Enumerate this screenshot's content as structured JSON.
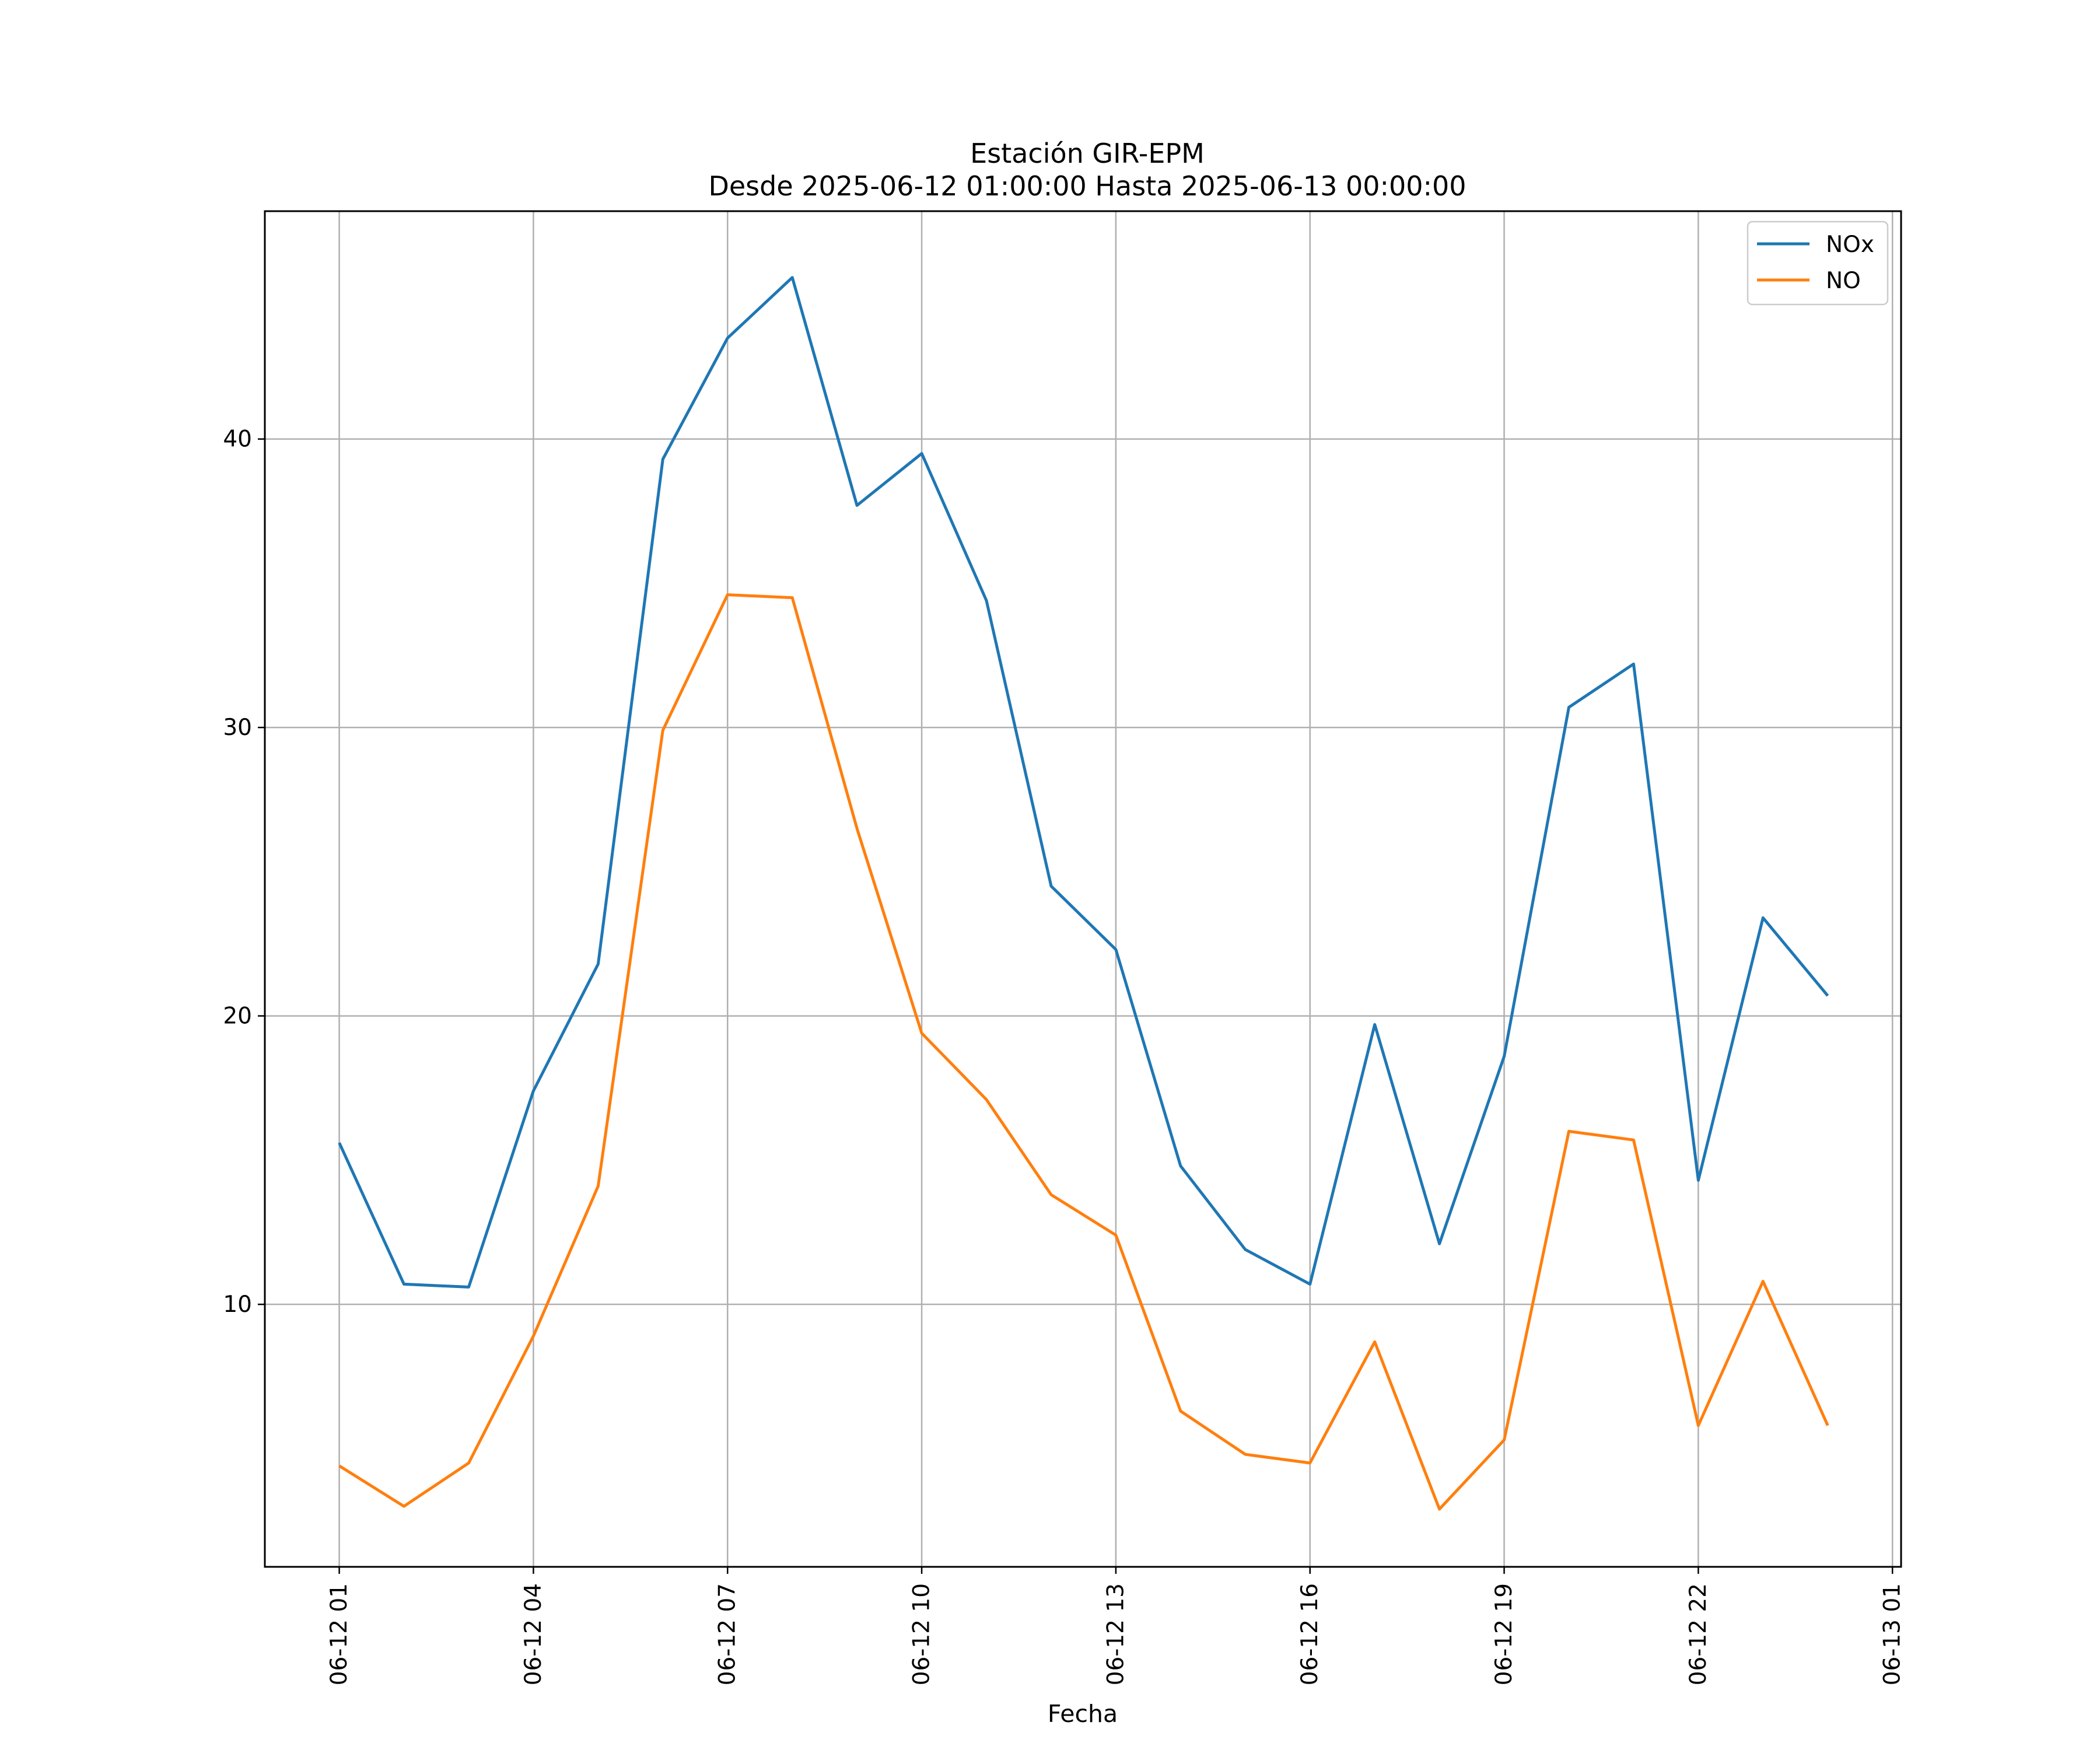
{
  "chart_data": {
    "type": "line",
    "title": "Estación GIR-EPM",
    "subtitle": "Desde 2025-06-12 01:00:00 Hasta 2025-06-13 00:00:00",
    "xlabel": "Fecha",
    "ylabel": "",
    "x": [
      "2025-06-12 01:00",
      "2025-06-12 02:00",
      "2025-06-12 03:00",
      "2025-06-12 04:00",
      "2025-06-12 05:00",
      "2025-06-12 06:00",
      "2025-06-12 07:00",
      "2025-06-12 08:00",
      "2025-06-12 09:00",
      "2025-06-12 10:00",
      "2025-06-12 11:00",
      "2025-06-12 12:00",
      "2025-06-12 13:00",
      "2025-06-12 14:00",
      "2025-06-12 15:00",
      "2025-06-12 16:00",
      "2025-06-12 17:00",
      "2025-06-12 18:00",
      "2025-06-12 19:00",
      "2025-06-12 20:00",
      "2025-06-12 21:00",
      "2025-06-12 22:00",
      "2025-06-12 23:00",
      "2025-06-13 00:00"
    ],
    "series": [
      {
        "name": "NOx",
        "color": "#1f77b4",
        "values": [
          15.6,
          10.7,
          10.6,
          17.4,
          21.8,
          39.3,
          43.5,
          45.6,
          37.7,
          39.5,
          34.4,
          24.5,
          22.3,
          14.8,
          11.9,
          10.7,
          19.7,
          12.1,
          18.6,
          30.7,
          32.2,
          14.3,
          23.4,
          20.7
        ]
      },
      {
        "name": "NO",
        "color": "#ff7f0e",
        "values": [
          4.4,
          3.0,
          4.5,
          8.9,
          14.1,
          29.9,
          34.6,
          34.5,
          26.5,
          19.4,
          17.1,
          13.8,
          12.4,
          6.3,
          4.8,
          4.5,
          8.7,
          2.9,
          5.3,
          16.0,
          15.7,
          5.8,
          10.8,
          5.8
        ]
      }
    ],
    "xticks": [
      "06-12 01",
      "06-12 04",
      "06-12 07",
      "06-12 10",
      "06-12 13",
      "06-12 16",
      "06-12 19",
      "06-12 22",
      "06-13 01"
    ],
    "yticks": [
      10,
      20,
      30,
      40
    ],
    "xlim": [
      "2025-06-11 23:51",
      "2025-06-13 01:08"
    ],
    "ylim": [
      0.9,
      47.9
    ],
    "grid": true,
    "legend": "top-right"
  }
}
